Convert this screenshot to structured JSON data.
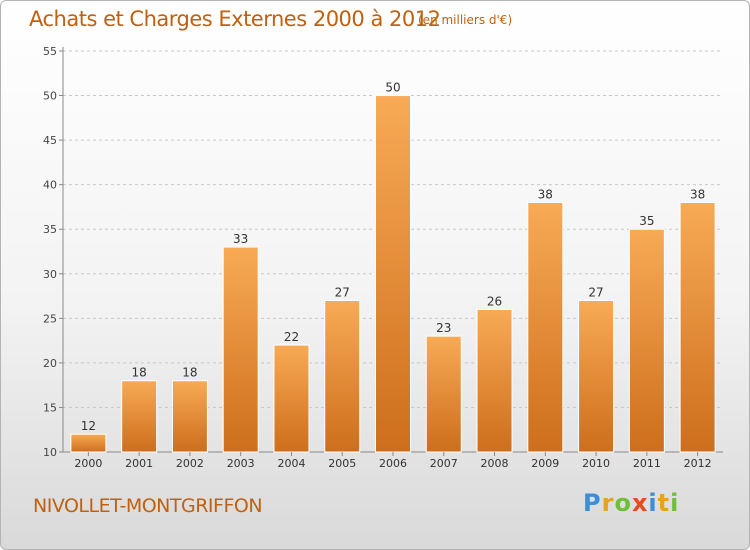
{
  "header": {
    "title": "Achats et Charges Externes 2000 à 2012",
    "subtitle": "(en milliers d'€)"
  },
  "footer": {
    "commune": "NIVOLLET-MONTGRIFFON",
    "logo_letters": [
      "P",
      "r",
      "o",
      "x",
      "i",
      "t",
      "i"
    ],
    "logo_colors": [
      "#3a8fd8",
      "#e8a21b",
      "#6fbf3a",
      "#e8491d",
      "#3a8fd8",
      "#e8a21b",
      "#6fbf3a"
    ]
  },
  "colors": {
    "title": "#c06010",
    "bar_light": "#f8aa55",
    "bar_dark": "#cd6e1c"
  },
  "chart_data": {
    "type": "bar",
    "title": "Achats et Charges Externes 2000 à 2012",
    "subtitle": "(en milliers d'€)",
    "categories": [
      "2000",
      "2001",
      "2002",
      "2003",
      "2004",
      "2005",
      "2006",
      "2007",
      "2008",
      "2009",
      "2010",
      "2011",
      "2012"
    ],
    "values": [
      12,
      18,
      18,
      33,
      22,
      27,
      50,
      23,
      26,
      38,
      27,
      35,
      38
    ],
    "ylim": [
      10,
      55
    ],
    "yticks": [
      10,
      15,
      20,
      25,
      30,
      35,
      40,
      45,
      50,
      55
    ],
    "grid": true,
    "xlabel": "",
    "ylabel": ""
  }
}
